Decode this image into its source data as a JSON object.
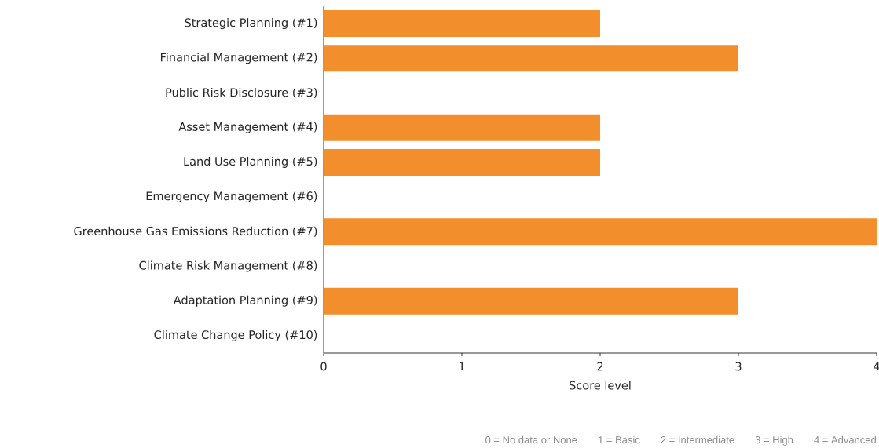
{
  "chart_data": {
    "type": "bar",
    "orientation": "horizontal",
    "categories": [
      "Strategic Planning (#1)",
      "Financial Management (#2)",
      "Public Risk Disclosure (#3)",
      "Asset Management (#4)",
      "Land Use Planning (#5)",
      "Emergency Management (#6)",
      "Greenhouse Gas Emissions Reduction (#7)",
      "Climate Risk Management (#8)",
      "Adaptation Planning (#9)",
      "Climate Change Policy (#10)"
    ],
    "values": [
      2,
      3,
      0,
      2,
      2,
      0,
      4,
      0,
      3,
      0
    ],
    "color": "#f28e2b",
    "xlim": [
      0,
      4
    ],
    "xticks": [
      0,
      1,
      2,
      3,
      4
    ],
    "xlabel": "Score level",
    "annotations": [
      "0 = No data or None",
      "1 = Basic",
      "2 = Intermediate",
      "3 = High",
      "4 = Advanced"
    ]
  }
}
